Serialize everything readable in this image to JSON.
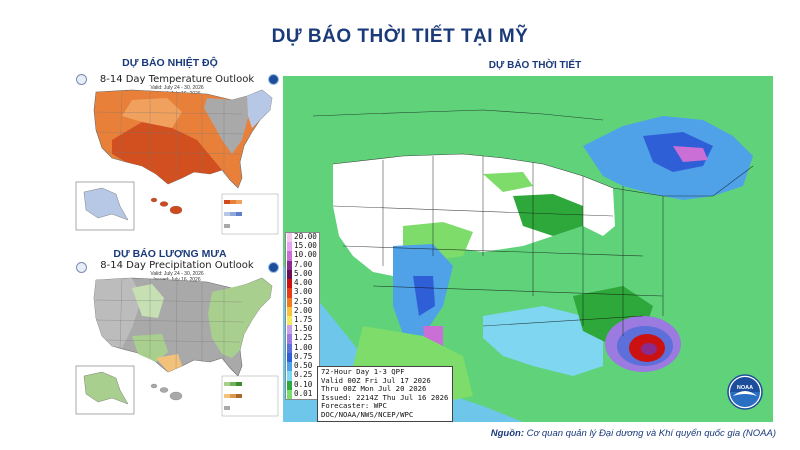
{
  "header": {
    "title": "DỰ BÁO THỜI TIẾT TẠI MỸ"
  },
  "temperature": {
    "section_title": "DỰ BÁO NHIỆT ĐỘ",
    "map_title": "8-14 Day Temperature Outlook",
    "valid": "Valid: July 24 - 30, 2026",
    "issued": "Issued: July 16, 2026",
    "colors": {
      "above": "#e9803a",
      "strong_above": "#cf4a1e",
      "normal": "#a9a9a9",
      "below": "#b7c8e6"
    }
  },
  "precipitation": {
    "section_title": "DỰ BÁO LƯỢNG MƯA",
    "map_title": "8-14 Day Precipitation Outlook",
    "valid": "Valid: July 24 - 30, 2026",
    "issued": "Issued: July 16, 2026",
    "colors": {
      "above": "#a9cf8f",
      "below": "#f2c27a",
      "normal": "#a9a9a9"
    }
  },
  "qpf": {
    "section_title": "DỰ BÁO THỜI TIẾT",
    "scale": [
      "20.00",
      "15.00",
      "10.00",
      "7.00",
      "5.00",
      "4.00",
      "3.00",
      "2.50",
      "2.00",
      "1.75",
      "1.50",
      "1.25",
      "1.00",
      "0.75",
      "0.50",
      "0.25",
      "0.10",
      "0.01"
    ],
    "scale_colors": [
      "#f5c8ee",
      "#e7a3f2",
      "#c96fd6",
      "#8b2b8b",
      "#6a0f55",
      "#cc1111",
      "#e83b1a",
      "#f07c22",
      "#f7c33a",
      "#f5e960",
      "#c8a2e8",
      "#9b7be0",
      "#5d6fd8",
      "#2f5fd6",
      "#4fa1e8",
      "#7ed6f0",
      "#2ea83a",
      "#7ddc6a"
    ],
    "info": {
      "line1": "72-Hour Day 1-3 QPF",
      "line2": "Valid 00Z Fri Jul 17 2026",
      "line3": "Thru 00Z Mon Jul 20 2026",
      "line4": "Issued: 2214Z Thu Jul 16 2026",
      "line5": "Forecaster: WPC",
      "line6": "DOC/NOAA/NWS/NCEP/WPC"
    },
    "logo_text": "NOAA"
  },
  "footer": {
    "source_label": "Nguồn:",
    "source_text": "Cơ quan quản lý Đại dương và Khí quyển quốc gia (NOAA)"
  }
}
